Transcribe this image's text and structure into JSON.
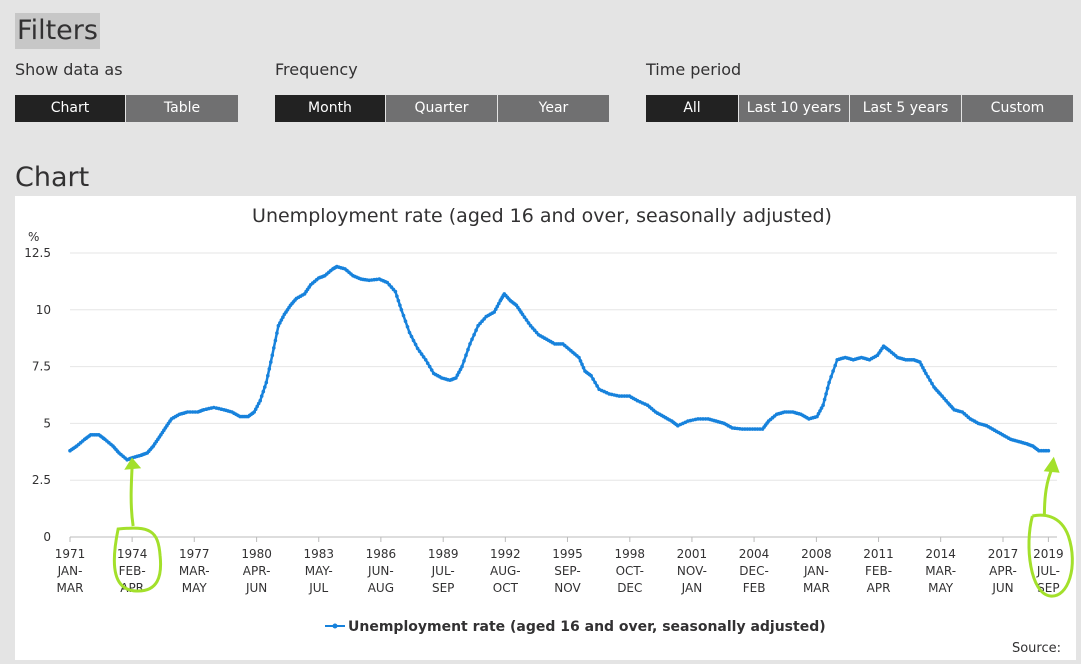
{
  "filters": {
    "title": "Filters",
    "show_data_as": {
      "label": "Show data as",
      "options": [
        "Chart",
        "Table"
      ],
      "selected": 0
    },
    "frequency": {
      "label": "Frequency",
      "options": [
        "Month",
        "Quarter",
        "Year"
      ],
      "selected": 0
    },
    "time_period": {
      "label": "Time period",
      "options": [
        "All",
        "Last 10 years",
        "Last 5 years",
        "Custom"
      ],
      "selected": 0
    }
  },
  "chart_section": {
    "heading": "Chart",
    "source_label": "Source:"
  },
  "colors": {
    "series": "#1782dc",
    "annotation": "#a3e02b"
  },
  "chart_data": {
    "type": "line",
    "title": "Unemployment rate (aged 16 and over, seasonally adjusted)",
    "ylabel": "%",
    "ylim": [
      0,
      12.5
    ],
    "yticks": [
      "0",
      "2.5",
      "5",
      "7.5",
      "10",
      "12.5"
    ],
    "grid": true,
    "legend": "bottom",
    "xlim": [
      1971.17,
      2019.7
    ],
    "xticks": [
      {
        "x": 1971.17,
        "label": [
          "1971",
          "JAN-",
          "MAR"
        ]
      },
      {
        "x": 1974.25,
        "label": [
          "1974",
          "FEB-",
          "APR"
        ]
      },
      {
        "x": 1977.33,
        "label": [
          "1977",
          "MAR-",
          "MAY"
        ]
      },
      {
        "x": 1980.42,
        "label": [
          "1980",
          "APR-",
          "JUN"
        ]
      },
      {
        "x": 1983.5,
        "label": [
          "1983",
          "MAY-",
          "JUL"
        ]
      },
      {
        "x": 1986.58,
        "label": [
          "1986",
          "JUN-",
          "AUG"
        ]
      },
      {
        "x": 1989.67,
        "label": [
          "1989",
          "JUL-",
          "SEP"
        ]
      },
      {
        "x": 1992.75,
        "label": [
          "1992",
          "AUG-",
          "OCT"
        ]
      },
      {
        "x": 1995.83,
        "label": [
          "1995",
          "SEP-",
          "NOV"
        ]
      },
      {
        "x": 1998.92,
        "label": [
          "1998",
          "OCT-",
          "DEC"
        ]
      },
      {
        "x": 2002.0,
        "label": [
          "2001",
          "NOV-",
          "JAN"
        ]
      },
      {
        "x": 2005.08,
        "label": [
          "2004",
          "DEC-",
          "FEB"
        ]
      },
      {
        "x": 2008.17,
        "label": [
          "2008",
          "JAN-",
          "MAR"
        ]
      },
      {
        "x": 2011.25,
        "label": [
          "2011",
          "FEB-",
          "APR"
        ]
      },
      {
        "x": 2014.33,
        "label": [
          "2014",
          "MAR-",
          "MAY"
        ]
      },
      {
        "x": 2017.42,
        "label": [
          "2017",
          "APR-",
          "JUN"
        ]
      },
      {
        "x": 2019.67,
        "label": [
          "2019",
          "JUL-",
          "SEP"
        ]
      }
    ],
    "series": [
      {
        "name": "Unemployment rate (aged 16 and over, seasonally adjusted)",
        "points": [
          [
            1971.17,
            3.8
          ],
          [
            1971.5,
            4.0
          ],
          [
            1971.9,
            4.3
          ],
          [
            1972.2,
            4.5
          ],
          [
            1972.6,
            4.5
          ],
          [
            1972.9,
            4.3
          ],
          [
            1973.3,
            4.0
          ],
          [
            1973.6,
            3.7
          ],
          [
            1974.0,
            3.4
          ],
          [
            1974.3,
            3.5
          ],
          [
            1974.7,
            3.6
          ],
          [
            1975.0,
            3.7
          ],
          [
            1975.3,
            4.0
          ],
          [
            1975.6,
            4.4
          ],
          [
            1975.9,
            4.8
          ],
          [
            1976.2,
            5.2
          ],
          [
            1976.6,
            5.4
          ],
          [
            1977.0,
            5.5
          ],
          [
            1977.5,
            5.5
          ],
          [
            1977.8,
            5.6
          ],
          [
            1978.3,
            5.7
          ],
          [
            1978.8,
            5.6
          ],
          [
            1979.2,
            5.5
          ],
          [
            1979.6,
            5.3
          ],
          [
            1980.0,
            5.3
          ],
          [
            1980.3,
            5.5
          ],
          [
            1980.6,
            6.0
          ],
          [
            1980.9,
            6.8
          ],
          [
            1981.2,
            8.0
          ],
          [
            1981.5,
            9.3
          ],
          [
            1981.8,
            9.8
          ],
          [
            1982.1,
            10.2
          ],
          [
            1982.4,
            10.5
          ],
          [
            1982.8,
            10.7
          ],
          [
            1983.1,
            11.1
          ],
          [
            1983.5,
            11.4
          ],
          [
            1983.8,
            11.5
          ],
          [
            1984.2,
            11.8
          ],
          [
            1984.4,
            11.9
          ],
          [
            1984.8,
            11.8
          ],
          [
            1985.2,
            11.5
          ],
          [
            1985.6,
            11.35
          ],
          [
            1986.0,
            11.3
          ],
          [
            1986.5,
            11.35
          ],
          [
            1986.9,
            11.2
          ],
          [
            1987.3,
            10.8
          ],
          [
            1987.6,
            10.0
          ],
          [
            1988.0,
            9.0
          ],
          [
            1988.4,
            8.3
          ],
          [
            1988.8,
            7.8
          ],
          [
            1989.2,
            7.2
          ],
          [
            1989.6,
            7.0
          ],
          [
            1990.0,
            6.9
          ],
          [
            1990.3,
            7.0
          ],
          [
            1990.6,
            7.5
          ],
          [
            1991.0,
            8.5
          ],
          [
            1991.4,
            9.3
          ],
          [
            1991.8,
            9.7
          ],
          [
            1992.2,
            9.9
          ],
          [
            1992.5,
            10.4
          ],
          [
            1992.7,
            10.7
          ],
          [
            1993.0,
            10.4
          ],
          [
            1993.3,
            10.2
          ],
          [
            1993.6,
            9.8
          ],
          [
            1994.0,
            9.3
          ],
          [
            1994.4,
            8.9
          ],
          [
            1994.8,
            8.7
          ],
          [
            1995.2,
            8.5
          ],
          [
            1995.6,
            8.5
          ],
          [
            1996.0,
            8.2
          ],
          [
            1996.4,
            7.9
          ],
          [
            1996.7,
            7.3
          ],
          [
            1997.0,
            7.1
          ],
          [
            1997.4,
            6.5
          ],
          [
            1997.9,
            6.3
          ],
          [
            1998.4,
            6.2
          ],
          [
            1998.9,
            6.2
          ],
          [
            1999.3,
            6.0
          ],
          [
            1999.8,
            5.8
          ],
          [
            2000.2,
            5.5
          ],
          [
            2000.6,
            5.3
          ],
          [
            2001.0,
            5.1
          ],
          [
            2001.3,
            4.9
          ],
          [
            2001.8,
            5.1
          ],
          [
            2002.3,
            5.2
          ],
          [
            2002.8,
            5.2
          ],
          [
            2003.2,
            5.1
          ],
          [
            2003.6,
            5.0
          ],
          [
            2004.0,
            4.8
          ],
          [
            2004.5,
            4.75
          ],
          [
            2005.0,
            4.75
          ],
          [
            2005.5,
            4.75
          ],
          [
            2005.8,
            5.1
          ],
          [
            2006.2,
            5.4
          ],
          [
            2006.6,
            5.5
          ],
          [
            2007.0,
            5.5
          ],
          [
            2007.4,
            5.4
          ],
          [
            2007.8,
            5.2
          ],
          [
            2008.2,
            5.3
          ],
          [
            2008.5,
            5.8
          ],
          [
            2008.8,
            6.8
          ],
          [
            2009.2,
            7.8
          ],
          [
            2009.6,
            7.9
          ],
          [
            2010.0,
            7.8
          ],
          [
            2010.4,
            7.9
          ],
          [
            2010.8,
            7.8
          ],
          [
            2011.2,
            8.0
          ],
          [
            2011.5,
            8.4
          ],
          [
            2011.8,
            8.2
          ],
          [
            2012.2,
            7.9
          ],
          [
            2012.6,
            7.8
          ],
          [
            2013.0,
            7.8
          ],
          [
            2013.3,
            7.7
          ],
          [
            2013.6,
            7.2
          ],
          [
            2014.0,
            6.6
          ],
          [
            2014.3,
            6.3
          ],
          [
            2014.7,
            5.9
          ],
          [
            2015.0,
            5.6
          ],
          [
            2015.4,
            5.5
          ],
          [
            2015.8,
            5.2
          ],
          [
            2016.2,
            5.0
          ],
          [
            2016.6,
            4.9
          ],
          [
            2017.0,
            4.7
          ],
          [
            2017.4,
            4.5
          ],
          [
            2017.8,
            4.3
          ],
          [
            2018.2,
            4.2
          ],
          [
            2018.6,
            4.1
          ],
          [
            2018.9,
            4.0
          ],
          [
            2019.2,
            3.8
          ],
          [
            2019.67,
            3.8
          ]
        ]
      }
    ]
  }
}
